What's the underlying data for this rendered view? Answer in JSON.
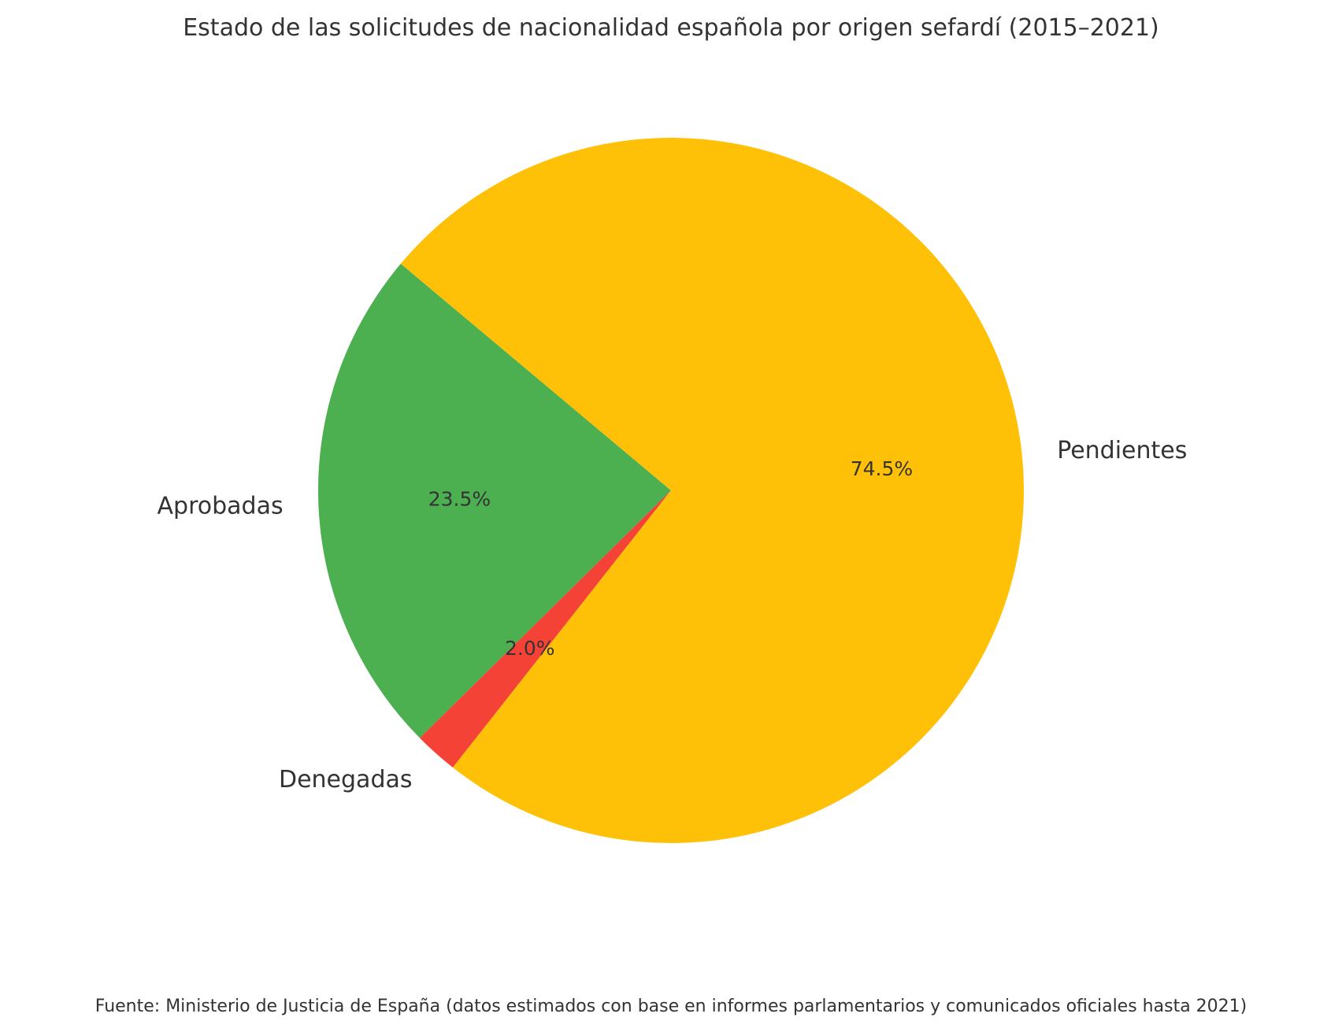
{
  "chart_data": {
    "type": "pie",
    "title": "Estado de las solicitudes de nacionalidad española por origen sefardí (2015–2021)",
    "footer": "Fuente: Ministerio de Justicia de España (datos estimados con base en informes parlamentarios y comunicados oficiales hasta 2021)",
    "slices": [
      {
        "label": "Aprobadas",
        "value": 23.5,
        "pct_label": "23.5%",
        "color": "#4caf50"
      },
      {
        "label": "Denegadas",
        "value": 2.0,
        "pct_label": "2.0%",
        "color": "#f44336"
      },
      {
        "label": "Pendientes",
        "value": 74.5,
        "pct_label": "74.5%",
        "color": "#ffc107"
      }
    ],
    "start_angle_deg": 140,
    "direction": "counterclockwise",
    "legend": "none"
  }
}
